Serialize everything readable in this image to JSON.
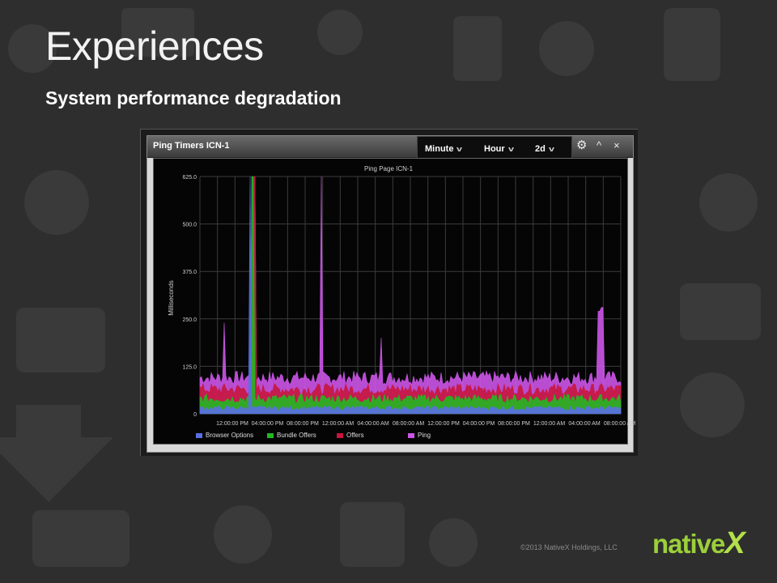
{
  "slide": {
    "title": "Experiences",
    "subtitle": "System performance degradation",
    "footer": "©2013 NativeX Holdings, LLC",
    "logo_text": "native",
    "logo_x": "X"
  },
  "panel": {
    "title": "Ping Timers ICN-1",
    "range_selectors": [
      {
        "label": "Minute"
      },
      {
        "label": "Hour"
      },
      {
        "label": "2d"
      }
    ],
    "icons": [
      "gear-icon",
      "collapse-icon",
      "close-icon"
    ]
  },
  "colors": {
    "browser_options": "#5a6fe6",
    "bundle_offers": "#22b822",
    "offers": "#c8163e",
    "ping": "#cc55e8"
  },
  "chart_data": {
    "type": "area",
    "title": "Ping Page ICN-1",
    "xlabel": "",
    "ylabel": "Milliseconds",
    "ylim": [
      0,
      625
    ],
    "yticks": [
      "0",
      "125.0",
      "250.0",
      "375.0",
      "500.0",
      "625.0"
    ],
    "xticks": [
      "12:00:00 PM",
      "04:00:00 PM",
      "08:00:00 PM",
      "12:00:00 AM",
      "04:00:00 AM",
      "08:00:00 AM",
      "12:00:00 PM",
      "04:00:00 PM",
      "08:00:00 PM",
      "12:00:00 AM",
      "04:00:00 AM",
      "08:00:00 AM"
    ],
    "grid": true,
    "legend_position": "bottom",
    "series": [
      {
        "name": "Browser Options",
        "typical_value": 15,
        "peaks": [
          [
            0.12,
            625
          ]
        ]
      },
      {
        "name": "Bundle Offers",
        "typical_value": 40,
        "peaks": [
          [
            0.125,
            625
          ]
        ]
      },
      {
        "name": "Offers",
        "typical_value": 65,
        "peaks": [
          [
            0.128,
            625
          ]
        ]
      },
      {
        "name": "Ping",
        "typical_value": 95,
        "peaks": [
          [
            0.057,
            240
          ],
          [
            0.13,
            625
          ],
          [
            0.289,
            625
          ],
          [
            0.43,
            200
          ],
          [
            0.948,
            270
          ],
          [
            0.956,
            280
          ]
        ]
      }
    ]
  }
}
